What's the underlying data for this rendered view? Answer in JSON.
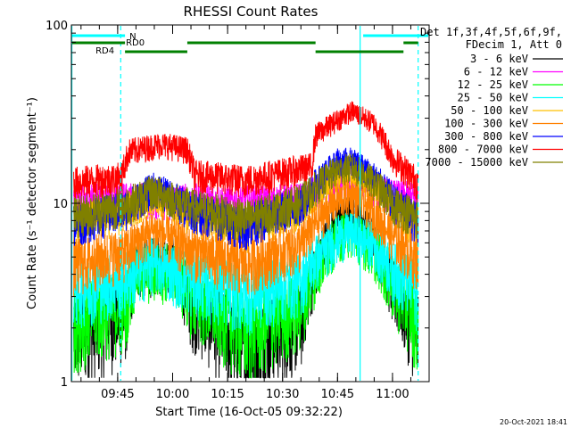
{
  "chart_data": {
    "type": "line",
    "title": "RHESSI Count Rates",
    "xlabel": "Start Time (16-Oct-05 09:32:22)",
    "ylabel": "Count Rate (s⁻¹ detector segment⁻¹)",
    "yscale": "log",
    "ylim": [
      1,
      100
    ],
    "xlim": [
      "09:32:22",
      "11:10:00"
    ],
    "x_ticks": [
      "09:45",
      "10:00",
      "10:15",
      "10:30",
      "10:45",
      "11:00"
    ],
    "y_ticks": [
      "1",
      "10",
      "100"
    ],
    "legend_header": [
      "Det 1f,3f,4f,5f,6f,9f,",
      "FDecim 1, Att 0"
    ],
    "legend_position": "right",
    "timestamp": "20-Oct-2021 18:41",
    "series": [
      {
        "name": "3 - 6 keV",
        "color": "#000000",
        "x": [
          "09:33",
          "09:47",
          "09:50",
          "10:00",
          "10:05",
          "10:20",
          "10:35",
          "10:40",
          "10:45",
          "10:49",
          "10:55",
          "11:00",
          "11:07"
        ],
        "y": [
          1.9,
          2.4,
          4.5,
          4.9,
          2.8,
          1.5,
          2.3,
          5.0,
          8.4,
          9.0,
          6.3,
          3.4,
          1.9
        ]
      },
      {
        "name": "6 - 12 keV",
        "color": "#ff00ff",
        "x": [
          "09:33",
          "09:47",
          "09:55",
          "10:05",
          "10:20",
          "10:35",
          "10:45",
          "10:50",
          "11:00",
          "11:07"
        ],
        "y": [
          10.6,
          10.5,
          10.6,
          10.4,
          10.1,
          10.4,
          13.0,
          13.5,
          11.0,
          10.5
        ]
      },
      {
        "name": "12 - 25 keV",
        "color": "#00ff00",
        "x": [
          "09:33",
          "09:47",
          "09:50",
          "10:00",
          "10:05",
          "10:20",
          "10:35",
          "10:40",
          "10:45",
          "10:49",
          "10:55",
          "11:00",
          "11:07"
        ],
        "y": [
          2.3,
          2.7,
          4.2,
          4.4,
          3.1,
          2.0,
          2.7,
          4.6,
          6.6,
          7.0,
          5.5,
          3.6,
          2.2
        ]
      },
      {
        "name": "25 - 50 keV",
        "color": "#00ffff",
        "x": [
          "09:33",
          "09:47",
          "09:55",
          "10:05",
          "10:20",
          "10:35",
          "10:45",
          "10:49",
          "10:55",
          "11:00",
          "11:07"
        ],
        "y": [
          3.4,
          3.8,
          4.8,
          3.8,
          3.2,
          3.8,
          6.5,
          7.0,
          5.9,
          4.4,
          3.3
        ]
      },
      {
        "name": "50 - 100 keV",
        "color": "#ffc000",
        "x": [
          "09:33",
          "09:47",
          "09:55",
          "10:05",
          "10:20",
          "10:35",
          "10:45",
          "10:49",
          "10:55",
          "11:00",
          "11:07"
        ],
        "y": [
          7.8,
          9.0,
          11.4,
          8.8,
          7.3,
          9.5,
          14.5,
          15.0,
          12.5,
          9.6,
          7.4
        ]
      },
      {
        "name": "100 - 300 keV",
        "color": "#ff8000",
        "x": [
          "09:33",
          "09:47",
          "09:55",
          "10:05",
          "10:20",
          "10:35",
          "10:45",
          "10:49",
          "10:55",
          "11:00",
          "11:07"
        ],
        "y": [
          4.6,
          5.4,
          7.1,
          5.5,
          4.6,
          5.9,
          10.5,
          11.2,
          8.8,
          6.6,
          4.8
        ]
      },
      {
        "name": "300 - 800 keV",
        "color": "#0000ff",
        "x": [
          "09:33",
          "09:47",
          "09:55",
          "10:05",
          "10:20",
          "10:35",
          "10:45",
          "10:49",
          "10:55",
          "11:00",
          "11:07"
        ],
        "y": [
          7.8,
          9.3,
          12.2,
          9.2,
          7.6,
          10.0,
          17.0,
          17.5,
          14.0,
          10.5,
          7.8
        ]
      },
      {
        "name": "800 - 7000 keV",
        "color": "#ff0000",
        "x": [
          "09:33",
          "09:46",
          "09:48",
          "09:57",
          "10:04",
          "10:06",
          "10:20",
          "10:38",
          "10:39",
          "10:49",
          "10:55",
          "11:00",
          "11:07"
        ],
        "y": [
          13.2,
          14.0,
          19.5,
          21.5,
          20.0,
          14.5,
          13.5,
          16.0,
          24.0,
          33.0,
          28.0,
          18.0,
          13.0
        ]
      },
      {
        "name": "7000 - 15000 keV",
        "color": "#808000",
        "x": [
          "09:33",
          "09:47",
          "09:55",
          "10:05",
          "10:20",
          "10:35",
          "10:45",
          "10:49",
          "10:55",
          "11:00",
          "11:07"
        ],
        "y": [
          8.6,
          9.8,
          11.8,
          9.6,
          8.2,
          10.2,
          15.5,
          16.0,
          13.0,
          10.0,
          8.4
        ]
      }
    ],
    "status_bars": [
      {
        "label": "N",
        "color": "#00ffff",
        "segments": [
          [
            "09:32",
            "09:47"
          ],
          [
            "10:52",
            "11:10"
          ]
        ]
      },
      {
        "label": "RD0",
        "color": "#008000",
        "segments": [
          [
            "09:32",
            "09:47"
          ],
          [
            "10:04",
            "10:39"
          ],
          [
            "11:03",
            "11:07"
          ]
        ]
      },
      {
        "label": "RD4",
        "color": "#008000",
        "segments": [
          [
            "09:47",
            "10:04"
          ],
          [
            "10:39",
            "11:03"
          ]
        ]
      }
    ],
    "vertical_lines": [
      {
        "x": "09:32:30",
        "color": "#00ffff",
        "style": "solid"
      },
      {
        "x": "09:45:50",
        "color": "#00ffff",
        "style": "dashed"
      },
      {
        "x": "10:51:10",
        "color": "#00ffff",
        "style": "solid"
      },
      {
        "x": "11:07:00",
        "color": "#00ffff",
        "style": "dashed"
      }
    ]
  }
}
